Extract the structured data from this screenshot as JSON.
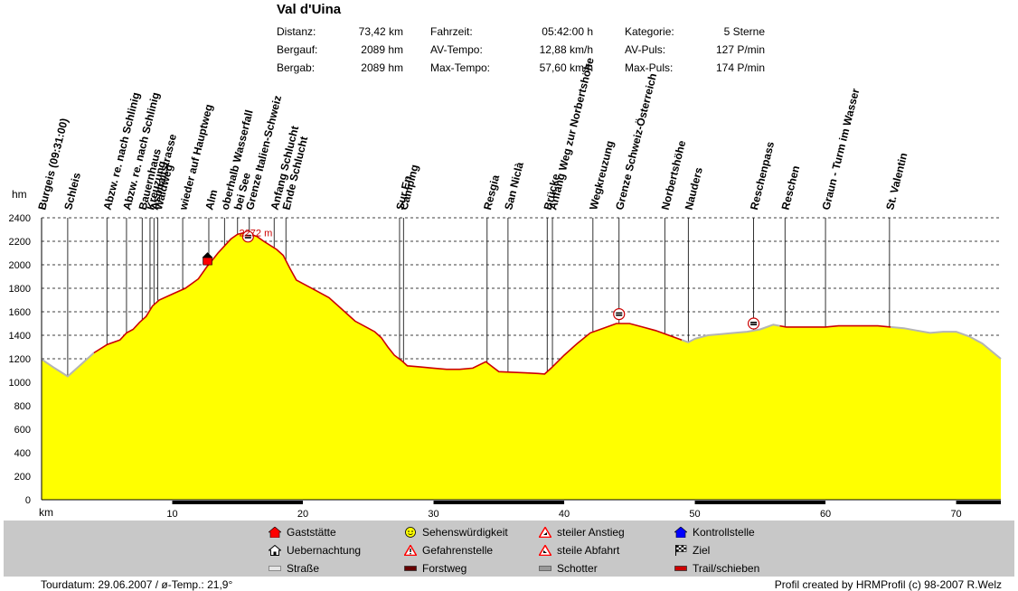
{
  "header": {
    "title": "Val d'Uina",
    "stats": [
      {
        "label": "Distanz:",
        "value": "73,42 km"
      },
      {
        "label": "Bergauf:",
        "value": "2089 hm"
      },
      {
        "label": "Bergab:",
        "value": "2089 hm"
      },
      {
        "label": "Fahrzeit:",
        "value": "05:42:00 h"
      },
      {
        "label": "AV-Tempo:",
        "value": "12,88 km/h"
      },
      {
        "label": "Max-Tempo:",
        "value": "57,60 km/h"
      },
      {
        "label": "Kategorie:",
        "value": "5 Sterne"
      },
      {
        "label": "AV-Puls:",
        "value": "127 P/min"
      },
      {
        "label": "Max-Puls:",
        "value": "174 P/min"
      }
    ]
  },
  "chart_data": {
    "type": "area",
    "ylabel": "hm",
    "xlabel": "km",
    "ylim": [
      0,
      2400
    ],
    "xlim": [
      0,
      73.42
    ],
    "yticks": [
      0,
      200,
      400,
      600,
      800,
      1000,
      1200,
      1400,
      1600,
      1800,
      2000,
      2200,
      2400
    ],
    "xticks": [
      10,
      20,
      30,
      40,
      50,
      60,
      70
    ],
    "grid": "horizontal dashed",
    "fill_color": "#ffff00",
    "max_label": "2272 m",
    "profile": [
      [
        0,
        1195
      ],
      [
        1,
        1120
      ],
      [
        2,
        1050
      ],
      [
        3,
        1150
      ],
      [
        4,
        1250
      ],
      [
        5,
        1320
      ],
      [
        6,
        1360
      ],
      [
        6.5,
        1420
      ],
      [
        7,
        1450
      ],
      [
        7.5,
        1510
      ],
      [
        8,
        1560
      ],
      [
        8.5,
        1650
      ],
      [
        9,
        1700
      ],
      [
        10,
        1750
      ],
      [
        11,
        1800
      ],
      [
        12,
        1880
      ],
      [
        12.7,
        1990
      ],
      [
        13,
        2030
      ],
      [
        13.5,
        2100
      ],
      [
        14,
        2160
      ],
      [
        14.5,
        2220
      ],
      [
        15,
        2260
      ],
      [
        15.5,
        2272
      ],
      [
        16,
        2260
      ],
      [
        16.5,
        2240
      ],
      [
        17,
        2200
      ],
      [
        18,
        2130
      ],
      [
        18.5,
        2080
      ],
      [
        19,
        1970
      ],
      [
        19.5,
        1870
      ],
      [
        20,
        1840
      ],
      [
        21,
        1780
      ],
      [
        22,
        1720
      ],
      [
        23,
        1620
      ],
      [
        24,
        1520
      ],
      [
        25,
        1460
      ],
      [
        25.5,
        1430
      ],
      [
        26,
        1380
      ],
      [
        26.5,
        1300
      ],
      [
        27,
        1230
      ],
      [
        27.6,
        1180
      ],
      [
        28,
        1140
      ],
      [
        29,
        1130
      ],
      [
        30,
        1120
      ],
      [
        31,
        1110
      ],
      [
        32,
        1110
      ],
      [
        33,
        1120
      ],
      [
        34,
        1175
      ],
      [
        35,
        1090
      ],
      [
        36,
        1085
      ],
      [
        37,
        1080
      ],
      [
        38,
        1075
      ],
      [
        38.5,
        1070
      ],
      [
        39,
        1120
      ],
      [
        40,
        1230
      ],
      [
        41,
        1330
      ],
      [
        42,
        1420
      ],
      [
        43,
        1460
      ],
      [
        44,
        1500
      ],
      [
        45,
        1500
      ],
      [
        46,
        1470
      ],
      [
        47,
        1440
      ],
      [
        48,
        1400
      ],
      [
        49,
        1360
      ],
      [
        49.5,
        1340
      ],
      [
        50,
        1370
      ],
      [
        51,
        1400
      ],
      [
        52,
        1410
      ],
      [
        53,
        1420
      ],
      [
        54,
        1430
      ],
      [
        55,
        1450
      ],
      [
        56,
        1490
      ],
      [
        56.5,
        1480
      ],
      [
        57,
        1470
      ],
      [
        60,
        1470
      ],
      [
        61,
        1480
      ],
      [
        64,
        1480
      ],
      [
        65,
        1470
      ],
      [
        66,
        1460
      ],
      [
        67,
        1440
      ],
      [
        68,
        1420
      ],
      [
        69,
        1430
      ],
      [
        70,
        1430
      ],
      [
        71,
        1390
      ],
      [
        72,
        1330
      ],
      [
        73.42,
        1200
      ]
    ],
    "markers": [
      {
        "label": "Burgeis (09:31:00)",
        "km": 0.0
      },
      {
        "label": "Schleis",
        "km": 2.0
      },
      {
        "label": "Abzw. re. nach Schlinig",
        "km": 5.0
      },
      {
        "label": "Abzw. re. nach Schlinig",
        "km": 6.5
      },
      {
        "label": "Bauernhaus",
        "km": 7.7
      },
      {
        "label": "Kreuzung",
        "km": 8.3
      },
      {
        "label": "Asphaltstrasse",
        "km": 8.6
      },
      {
        "label": "Waldweg",
        "km": 8.9
      },
      {
        "label": "wieder auf Hauptweg",
        "km": 10.8
      },
      {
        "label": "Alm",
        "km": 12.8
      },
      {
        "label": "oberhalb Wasserfall",
        "km": 14.0
      },
      {
        "label": "bei See",
        "km": 15.0
      },
      {
        "label": "Grenze Italien-Schweiz",
        "km": 15.9
      },
      {
        "label": "Anfang Schlucht",
        "km": 17.8
      },
      {
        "label": "Ende Schlucht",
        "km": 18.7
      },
      {
        "label": "Sur En",
        "km": 27.4
      },
      {
        "label": "Camping",
        "km": 27.7
      },
      {
        "label": "Resgia",
        "km": 34.1
      },
      {
        "label": "San Niclà",
        "km": 35.7
      },
      {
        "label": "Brücke",
        "km": 38.7
      },
      {
        "label": "Anfang Weg zur Norbertshöhe",
        "km": 39.1
      },
      {
        "label": "Wegkreuzung",
        "km": 42.2
      },
      {
        "label": "Grenze Schweiz-Österreich",
        "km": 44.2
      },
      {
        "label": "Norbertshöhe",
        "km": 47.7
      },
      {
        "label": "Nauders",
        "km": 49.5
      },
      {
        "label": "Reschenpass",
        "km": 54.5
      },
      {
        "label": "Reschen",
        "km": 56.9
      },
      {
        "label": "Graun - Turm im Wasser",
        "km": 60.0
      },
      {
        "label": "St. Valentin",
        "km": 64.9
      }
    ]
  },
  "legend": [
    {
      "label": "Gaststätte",
      "icon": "house-red-icon",
      "color": "#ff0000"
    },
    {
      "label": "Sehenswürdigkeit",
      "icon": "smiley-icon",
      "color": "#ffff00"
    },
    {
      "label": "steiler Anstieg",
      "icon": "warning-up-icon",
      "color": "#ff0000"
    },
    {
      "label": "Kontrollstelle",
      "icon": "house-blue-icon",
      "color": "#0000ff"
    },
    {
      "label": "Uebernachtung",
      "icon": "house-outline-icon",
      "color": "#000000"
    },
    {
      "label": "Gefahrenstelle",
      "icon": "warning-icon",
      "color": "#ff0000"
    },
    {
      "label": "steile Abfahrt",
      "icon": "warning-down-icon",
      "color": "#ff0000"
    },
    {
      "label": "Ziel",
      "icon": "checkered-flag-icon",
      "color": "#000000"
    },
    {
      "label": "Straße",
      "icon": "road-swatch-icon",
      "color": "#e6e6e6"
    },
    {
      "label": "Forstweg",
      "icon": "forest-swatch-icon",
      "color": "#660000"
    },
    {
      "label": "Schotter",
      "icon": "gravel-swatch-icon",
      "color": "#999999"
    },
    {
      "label": "Trail/schieben",
      "icon": "trail-swatch-icon",
      "color": "#cc0000"
    }
  ],
  "footer": {
    "left": "Tourdatum: 29.06.2007  /  ø-Temp.: 21,9°",
    "right": "Profil created by HRMProfil (c) 98-2007 R.Welz"
  }
}
